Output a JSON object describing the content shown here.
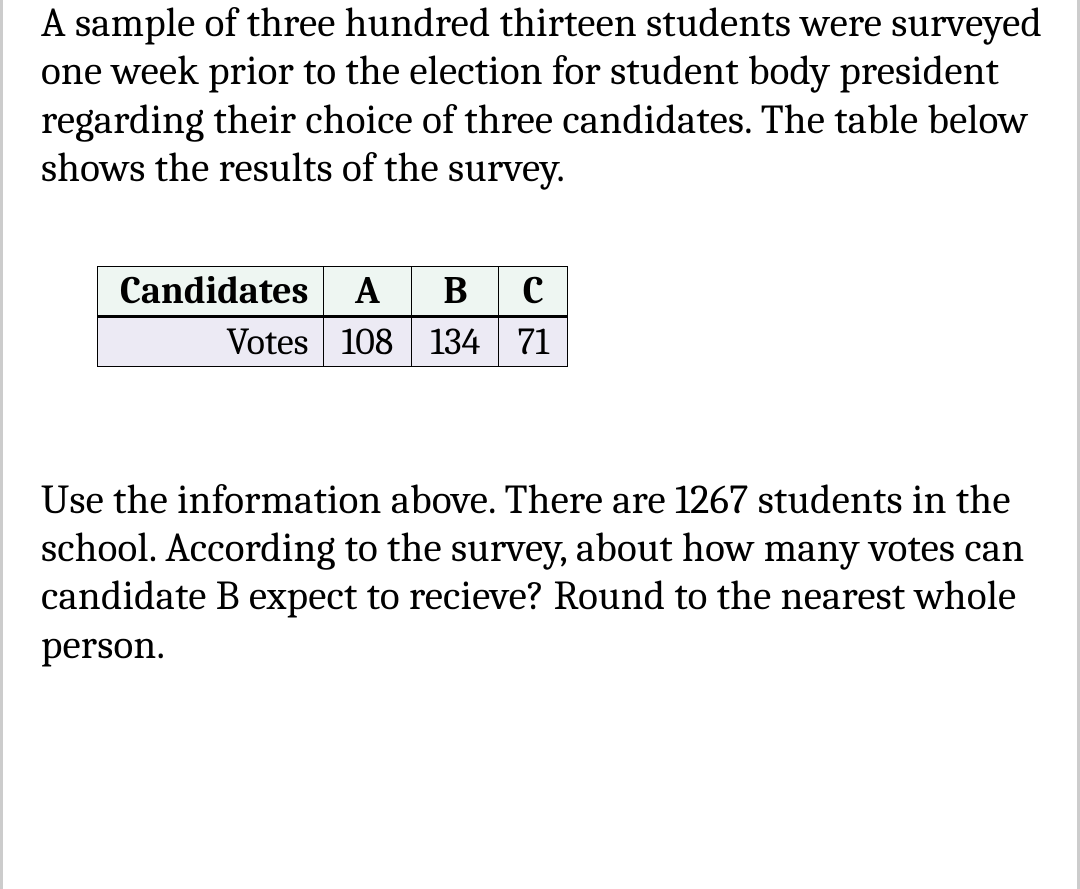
{
  "intro_text": "A sample of three hundred thirteen students were surveyed one week prior to the election for student body president regarding their choice of three candidates. The table below shows the results of the survey.",
  "table": {
    "header_label": "Candidates",
    "columns": [
      "A",
      "B",
      "C"
    ],
    "row_label": "Votes",
    "values": [
      108,
      134,
      71
    ],
    "header_bg": "#eef6f2",
    "row_bg": "#eceaf4",
    "border_color": "#000000",
    "font_size_pt": 29,
    "header_font_weight": "bold"
  },
  "question_text": "Use the information above. There are 1267 students in the school. According to the survey, about how many votes can candidate B expect to recieve? Round to the nearest whole person.",
  "styling": {
    "body_font_size_pt": 31,
    "line_height": 1.18,
    "text_color": "#000000",
    "background_color": "#ffffff",
    "side_border_color": "#cccccc",
    "font_family": "Cambria / Georgia / serif"
  }
}
